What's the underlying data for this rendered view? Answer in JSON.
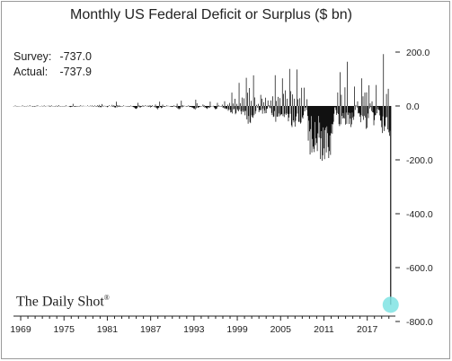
{
  "chart_data": {
    "type": "bar",
    "title": "Monthly US Federal Deficit or Surplus ($ bn)",
    "xlabel": "",
    "ylabel": "",
    "x_ticks": [
      "1969",
      "1975",
      "1981",
      "1987",
      "1993",
      "1999",
      "2005",
      "2011",
      "2017"
    ],
    "y_ticks": [
      "200.0",
      "0.0",
      "-200.0",
      "-400.0",
      "-600.0",
      "-800.0"
    ],
    "ylim": [
      -800,
      220
    ],
    "x_range": [
      1968.0,
      2020.9
    ],
    "y_axis_position": "right",
    "grid": false,
    "annotation": {
      "survey_label": "Survey:",
      "survey_value": "-737.0",
      "actual_label": "Actual:",
      "actual_value": "-737.9"
    },
    "highlight": {
      "year": 2020.25,
      "value": -737.9,
      "color": "#7fe3e3"
    },
    "series": [
      {
        "color": "#111111",
        "approximate_monthly_pattern": true,
        "points": [
          [
            1968.0,
            0
          ],
          [
            1970,
            4
          ],
          [
            1970.6,
            -6
          ],
          [
            1973,
            5
          ],
          [
            1974,
            -8
          ],
          [
            1975,
            6
          ],
          [
            1976,
            -12
          ],
          [
            1979,
            6
          ],
          [
            1980,
            -15
          ],
          [
            1981,
            10
          ],
          [
            1982,
            -20
          ],
          [
            1984,
            8
          ],
          [
            1985,
            -25
          ],
          [
            1987,
            15
          ],
          [
            1988,
            -30
          ],
          [
            1990,
            14
          ],
          [
            1991,
            -35
          ],
          [
            1992,
            12
          ],
          [
            1993,
            -40
          ],
          [
            1995,
            35
          ],
          [
            1996,
            -30
          ],
          [
            1998,
            65
          ],
          [
            1999,
            78
          ],
          [
            2000,
            110
          ],
          [
            2001,
            190
          ],
          [
            2002,
            -60
          ],
          [
            2003,
            -70
          ],
          [
            2004,
            115
          ],
          [
            2005,
            160
          ],
          [
            2006,
            175
          ],
          [
            2007,
            180
          ],
          [
            2008,
            165
          ],
          [
            2009,
            -190
          ],
          [
            2010,
            -200
          ],
          [
            2011,
            -210
          ],
          [
            2012,
            -200
          ],
          [
            2013,
            175
          ],
          [
            2014,
            160
          ],
          [
            2015,
            185
          ],
          [
            2016,
            -180
          ],
          [
            2017,
            -190
          ],
          [
            2018,
            210
          ],
          [
            2019,
            -230
          ],
          [
            2020.0,
            -235
          ],
          [
            2020.25,
            -737.9
          ]
        ]
      }
    ]
  },
  "brand": {
    "name": "The Daily Shot",
    "mark": "®"
  }
}
